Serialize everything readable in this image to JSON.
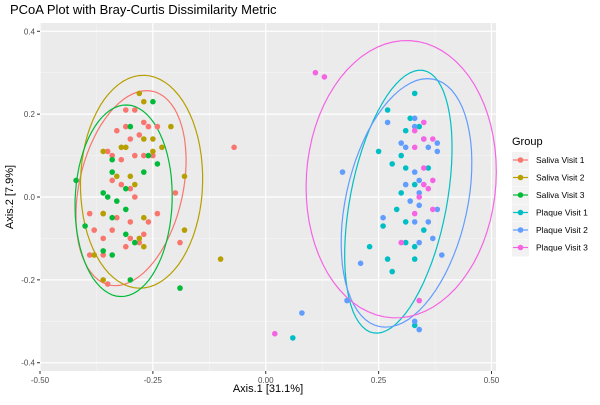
{
  "chart_data": {
    "type": "scatter",
    "title": "PCoA Plot with Bray-Curtis Dissimilarity Metric",
    "xlabel": "Axis.1   [31.1%]",
    "ylabel": "Axis.2   [7.9%]",
    "xlim": [
      -0.5,
      0.51
    ],
    "ylim": [
      -0.42,
      0.42
    ],
    "x_ticks": [
      -0.5,
      -0.25,
      0.0,
      0.25,
      0.5
    ],
    "x_tick_labels": [
      "-0.50",
      "-0.25",
      "0.00",
      "0.25",
      "0.50"
    ],
    "y_ticks": [
      -0.4,
      -0.2,
      0.0,
      0.2,
      0.4
    ],
    "y_tick_labels": [
      "-0.4",
      "-0.2",
      "0.0",
      "0.2",
      "0.4"
    ],
    "grid": true,
    "legend": {
      "title": "Group",
      "position": "right"
    },
    "ellipses": true,
    "series": [
      {
        "name": "Saliva Visit 1",
        "color": "#F8766D",
        "points": [
          [
            -0.31,
            0.21
          ],
          [
            -0.29,
            0.21
          ],
          [
            -0.33,
            0.16
          ],
          [
            -0.31,
            0.17
          ],
          [
            -0.3,
            0.14
          ],
          [
            -0.28,
            0.15
          ],
          [
            -0.27,
            0.18
          ],
          [
            -0.26,
            0.17
          ],
          [
            -0.24,
            0.17
          ],
          [
            -0.35,
            0.11
          ],
          [
            -0.34,
            0.1
          ],
          [
            -0.32,
            0.09
          ],
          [
            -0.29,
            0.1
          ],
          [
            -0.27,
            0.1
          ],
          [
            -0.25,
            0.1
          ],
          [
            -0.34,
            0.04
          ],
          [
            -0.32,
            0.03
          ],
          [
            -0.3,
            0.02
          ],
          [
            -0.29,
            0.0
          ],
          [
            -0.39,
            -0.04
          ],
          [
            -0.36,
            -0.04
          ],
          [
            -0.33,
            -0.05
          ],
          [
            -0.3,
            -0.06
          ],
          [
            -0.24,
            -0.04
          ],
          [
            -0.26,
            -0.06
          ],
          [
            -0.38,
            -0.08
          ],
          [
            -0.34,
            -0.08
          ],
          [
            -0.3,
            -0.1
          ],
          [
            -0.27,
            -0.09
          ],
          [
            -0.36,
            -0.1
          ],
          [
            -0.31,
            -0.12
          ],
          [
            -0.28,
            -0.11
          ],
          [
            -0.19,
            -0.11
          ],
          [
            -0.36,
            -0.14
          ],
          [
            -0.39,
            -0.14
          ],
          [
            -0.35,
            -0.21
          ],
          [
            -0.2,
            0.01
          ],
          [
            -0.07,
            0.12
          ]
        ]
      },
      {
        "name": "Saliva Visit 2",
        "color": "#B79F00",
        "points": [
          [
            -0.28,
            0.25
          ],
          [
            -0.27,
            0.23
          ],
          [
            -0.36,
            0.11
          ],
          [
            -0.32,
            0.12
          ],
          [
            -0.31,
            0.12
          ],
          [
            -0.27,
            0.14
          ],
          [
            -0.25,
            0.14
          ],
          [
            -0.25,
            0.11
          ],
          [
            -0.23,
            0.12
          ],
          [
            -0.21,
            0.17
          ],
          [
            -0.33,
            0.05
          ],
          [
            -0.3,
            0.05
          ],
          [
            -0.29,
            0.03
          ],
          [
            -0.36,
            -0.04
          ],
          [
            -0.27,
            -0.05
          ],
          [
            -0.28,
            -0.1
          ],
          [
            -0.27,
            -0.12
          ],
          [
            -0.18,
            -0.08
          ],
          [
            -0.38,
            -0.14
          ],
          [
            -0.36,
            -0.2
          ],
          [
            -0.1,
            -0.15
          ],
          [
            -0.18,
            0.05
          ]
        ]
      },
      {
        "name": "Saliva Visit 3",
        "color": "#00BA38",
        "points": [
          [
            -0.25,
            0.23
          ],
          [
            -0.3,
            0.17
          ],
          [
            -0.26,
            0.1
          ],
          [
            -0.24,
            0.08
          ],
          [
            -0.34,
            0.09
          ],
          [
            -0.34,
            0.06
          ],
          [
            -0.27,
            0.06
          ],
          [
            -0.31,
            0.02
          ],
          [
            -0.36,
            0.01
          ],
          [
            -0.35,
            0.0
          ],
          [
            -0.33,
            -0.01
          ],
          [
            -0.31,
            -0.03
          ],
          [
            -0.42,
            0.04
          ],
          [
            -0.34,
            -0.05
          ],
          [
            -0.4,
            -0.07
          ],
          [
            -0.31,
            -0.09
          ],
          [
            -0.29,
            -0.11
          ],
          [
            -0.36,
            -0.13
          ],
          [
            -0.34,
            -0.14
          ],
          [
            -0.3,
            -0.2
          ],
          [
            -0.19,
            -0.22
          ]
        ]
      },
      {
        "name": "Plaque Visit 1",
        "color": "#00BFC4",
        "points": [
          [
            0.33,
            0.25
          ],
          [
            0.27,
            0.21
          ],
          [
            0.32,
            0.19
          ],
          [
            0.34,
            0.17
          ],
          [
            0.31,
            0.16
          ],
          [
            0.25,
            0.11
          ],
          [
            0.3,
            0.1
          ],
          [
            0.28,
            0.08
          ],
          [
            0.31,
            0.07
          ],
          [
            0.36,
            0.07
          ],
          [
            0.33,
            0.03
          ],
          [
            0.3,
            0.01
          ],
          [
            0.29,
            -0.03
          ],
          [
            0.26,
            -0.07
          ],
          [
            0.31,
            -0.06
          ],
          [
            0.35,
            -0.08
          ],
          [
            0.23,
            -0.12
          ],
          [
            0.31,
            -0.11
          ],
          [
            0.33,
            -0.12
          ],
          [
            0.27,
            -0.15
          ],
          [
            0.33,
            -0.15
          ],
          [
            0.33,
            -0.31
          ],
          [
            0.06,
            -0.34
          ],
          [
            0.28,
            -0.18
          ]
        ]
      },
      {
        "name": "Plaque Visit 2",
        "color": "#619CFF",
        "points": [
          [
            0.27,
            0.18
          ],
          [
            0.33,
            0.19
          ],
          [
            0.33,
            0.17
          ],
          [
            0.35,
            0.14
          ],
          [
            0.3,
            0.13
          ],
          [
            0.31,
            0.12
          ],
          [
            0.36,
            0.12
          ],
          [
            0.38,
            0.13
          ],
          [
            0.38,
            0.11
          ],
          [
            0.17,
            0.06
          ],
          [
            0.33,
            0.06
          ],
          [
            0.31,
            0.03
          ],
          [
            0.34,
            0.04
          ],
          [
            0.34,
            0.01
          ],
          [
            0.32,
            -0.01
          ],
          [
            0.26,
            -0.05
          ],
          [
            0.34,
            -0.02
          ],
          [
            0.38,
            -0.03
          ],
          [
            0.36,
            -0.06
          ],
          [
            0.37,
            -0.1
          ],
          [
            0.39,
            -0.14
          ],
          [
            0.34,
            -0.11
          ],
          [
            0.33,
            -0.06
          ],
          [
            0.21,
            -0.16
          ],
          [
            0.18,
            -0.25
          ],
          [
            0.33,
            -0.3
          ],
          [
            0.34,
            -0.32
          ],
          [
            0.08,
            -0.28
          ]
        ]
      },
      {
        "name": "Plaque Visit 3",
        "color": "#F564E3",
        "points": [
          [
            0.11,
            0.3
          ],
          [
            0.13,
            0.29
          ],
          [
            0.35,
            0.18
          ],
          [
            0.33,
            0.16
          ],
          [
            0.35,
            0.14
          ],
          [
            0.37,
            0.14
          ],
          [
            0.33,
            0.12
          ],
          [
            0.35,
            0.07
          ],
          [
            0.37,
            0.04
          ],
          [
            0.35,
            0.03
          ],
          [
            0.36,
            0.02
          ],
          [
            0.34,
            0.0
          ],
          [
            0.37,
            -0.03
          ],
          [
            0.33,
            -0.04
          ],
          [
            0.3,
            -0.11
          ],
          [
            0.34,
            -0.25
          ],
          [
            0.02,
            -0.33
          ]
        ]
      }
    ]
  }
}
